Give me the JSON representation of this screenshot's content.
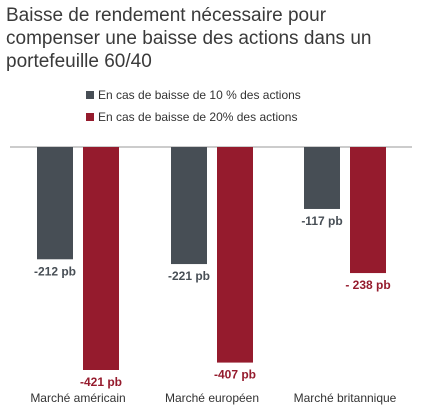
{
  "chart_data": {
    "type": "bar",
    "title": "Baisse de rendement nécessaire pour compenser une baisse des actions dans un portefeuille 60/40",
    "categories": [
      "Marché américain",
      "Marché européen",
      "Marché britannique"
    ],
    "series": [
      {
        "name": "En cas de baisse de 10 % des actions",
        "values": [
          -212,
          -221,
          -117
        ],
        "labels": [
          "-212 pb",
          "-221 pb",
          "-117 pb"
        ],
        "color": "#474e55"
      },
      {
        "name": "En cas de baisse de 20% des actions",
        "values": [
          -421,
          -407,
          -238
        ],
        "labels": [
          "-421 pb",
          "-407 pb",
          "- 238 pb"
        ],
        "color": "#951b2d"
      }
    ],
    "ylim": [
      -450,
      0
    ],
    "grid": false,
    "legend_position": "top-left"
  }
}
